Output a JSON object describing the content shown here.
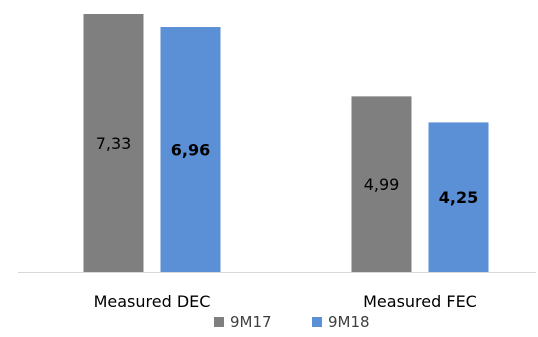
{
  "chart_data": {
    "type": "bar",
    "categories": [
      "Measured DEC",
      "Measured FEC"
    ],
    "series": [
      {
        "name": "9M17",
        "color": "#7f7f7f",
        "values": [
          7.33,
          4.99
        ],
        "labels": [
          "7,33",
          "4,99"
        ],
        "label_bold": false
      },
      {
        "name": "9M18",
        "color": "#5b8fd6",
        "values": [
          6.96,
          4.25
        ],
        "labels": [
          "6,96",
          "4,25"
        ],
        "label_bold": true
      }
    ],
    "ylim": [
      0,
      7.33
    ],
    "legend_position": "bottom",
    "grid": false
  }
}
